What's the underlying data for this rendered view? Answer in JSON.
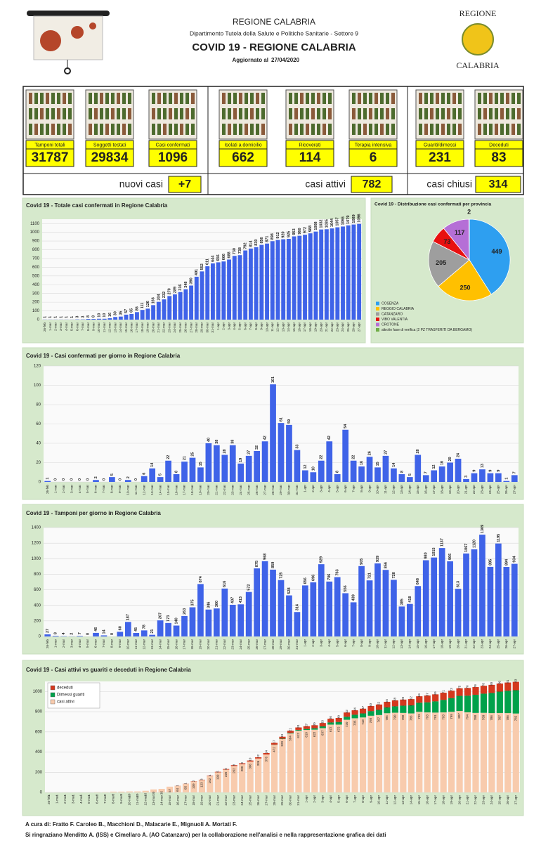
{
  "header": {
    "region": "REGIONE CALABRIA",
    "department": "Dipartimento Tutela della Salute e Politiche Sanitarie - Settore 9",
    "title": "COVID 19 - REGIONE CALABRIA",
    "updated_label": "Aggiornato al",
    "updated_date": "27/04/2020",
    "logo_top": "REGIONE",
    "logo_bottom": "CALABRIA"
  },
  "kpis": [
    {
      "label": "Tamponi totali",
      "value": 31787
    },
    {
      "label": "Soggetti testati",
      "value": 29834
    },
    {
      "label": "Casi confermati",
      "value": 1096
    },
    {
      "label": "Isolati a domicilio",
      "value": 662
    },
    {
      "label": "Ricoverati",
      "value": 114
    },
    {
      "label": "Terapia intensiva",
      "value": 6
    },
    {
      "label": "Guariti/dimessi",
      "value": 231
    },
    {
      "label": "Deceduti",
      "value": 83
    }
  ],
  "summary": [
    {
      "label": "nuovi casi",
      "value": "+7"
    },
    {
      "label": "casi attivi",
      "value": 782
    },
    {
      "label": "casi chiusi",
      "value": 314
    }
  ],
  "chart_data": [
    {
      "type": "bar",
      "title": "Covid 19 - Totale casi confermati in Regione Calabria",
      "color": "#3f63e8",
      "grid": true,
      "ylim": [
        0,
        1150
      ],
      "yticks": [
        0,
        100,
        200,
        300,
        400,
        500,
        600,
        700,
        800,
        900,
        1000,
        1100
      ],
      "categories": [
        "26-feb",
        "1-mar",
        "2-mar",
        "3-mar",
        "4-mar",
        "5-mar",
        "6-mar",
        "7-mar",
        "8-mar",
        "9-mar",
        "10-mar",
        "11-mar",
        "12-mar",
        "13-mar",
        "14-mar",
        "15-mar",
        "16-mar",
        "17-mar",
        "18-mar",
        "19-mar",
        "20-mar",
        "21-mar",
        "22-mar",
        "23-mar",
        "24-mar",
        "25-mar",
        "26-mar",
        "27-mar",
        "28-mar",
        "29-mar",
        "30-mar",
        "31-mar",
        "1-apr",
        "2-apr",
        "3-apr",
        "4-apr",
        "5-apr",
        "6-apr",
        "7-apr",
        "8-apr",
        "9-apr",
        "10-apr",
        "11-apr",
        "12-apr",
        "13-apr",
        "14-apr",
        "15-apr",
        "16-apr",
        "17-apr",
        "18-apr",
        "19-apr",
        "20-apr",
        "21-apr",
        "22-apr",
        "23-apr",
        "24-apr",
        "25-apr",
        "26-apr",
        "27-apr"
      ],
      "values": [
        1,
        1,
        1,
        1,
        1,
        1,
        3,
        3,
        8,
        8,
        10,
        10,
        16,
        30,
        35,
        57,
        65,
        86,
        111,
        126,
        166,
        204,
        232,
        270,
        289,
        316,
        348,
        390,
        491,
        552,
        611,
        644,
        656,
        666,
        688,
        730,
        738,
        792,
        814,
        830,
        856,
        871,
        898,
        912,
        920,
        925,
        953,
        960,
        972,
        988,
        1008,
        1032,
        1035,
        1044,
        1057,
        1066,
        1079,
        1089,
        1096
      ]
    },
    {
      "type": "pie",
      "title": "Covid 19 - Distribuzione casi confermati per provincia",
      "categories": [
        "COSENZA",
        "REGGIO CALABRIA",
        "CATANZARO",
        "VIBO VALENTIA",
        "CROTONE",
        "altro/in fase di verifica (2 PZ TRASFERITI DA BERGAMO)"
      ],
      "values": [
        449,
        250,
        205,
        73,
        117,
        2
      ],
      "colors": [
        "#2e9ff0",
        "#ffc000",
        "#9e9e9e",
        "#e81010",
        "#b56fd6",
        "#70ad47"
      ]
    },
    {
      "type": "bar",
      "title": "Covid 19 - Casi confermati per giorno in Regione Calabria",
      "color": "#3f63e8",
      "grid": true,
      "ylim": [
        0,
        120
      ],
      "yticks": [
        0,
        20,
        40,
        60,
        80,
        100,
        120
      ],
      "categories": [
        "26-feb",
        "1-mar",
        "2-mar",
        "3-mar",
        "4-mar",
        "5-mar",
        "6-mar",
        "7-mar",
        "8-mar",
        "9-mar",
        "10-mar",
        "11-mar",
        "12-mar",
        "13-mar",
        "14-mar",
        "15-mar",
        "16-mar",
        "17-mar",
        "18-mar",
        "19-mar",
        "20-mar",
        "21-mar",
        "22-mar",
        "23-mar",
        "24-mar",
        "25-mar",
        "26-mar",
        "27-mar",
        "28-mar",
        "29-mar",
        "30-mar",
        "31-mar",
        "1-apr",
        "2-apr",
        "3-apr",
        "4-apr",
        "5-apr",
        "6-apr",
        "7-apr",
        "8-apr",
        "9-apr",
        "10-apr",
        "11-apr",
        "12-apr",
        "13-apr",
        "14-apr",
        "15-apr",
        "16-apr",
        "17-apr",
        "18-apr",
        "19-apr",
        "20-apr",
        "21-apr",
        "22-apr",
        "23-apr",
        "24-apr",
        "25-apr",
        "26-apr",
        "27-apr"
      ],
      "values": [
        1,
        0,
        0,
        0,
        0,
        0,
        2,
        0,
        5,
        0,
        2,
        0,
        6,
        14,
        5,
        22,
        8,
        21,
        25,
        15,
        40,
        38,
        28,
        38,
        19,
        27,
        32,
        42,
        101,
        61,
        59,
        33,
        12,
        10,
        22,
        42,
        8,
        54,
        22,
        16,
        26,
        15,
        27,
        14,
        8,
        5,
        28,
        7,
        12,
        16,
        20,
        24,
        3,
        9,
        13,
        9,
        9,
        1,
        7
      ]
    },
    {
      "type": "bar",
      "title": "Covid 19 - Tamponi per giorno in Regione Calabria",
      "color": "#3f63e8",
      "grid": true,
      "ylim": [
        0,
        1400
      ],
      "yticks": [
        0,
        200,
        400,
        600,
        800,
        1000,
        1200,
        1400
      ],
      "categories": [
        "26-feb",
        "1-mar",
        "2-mar",
        "3-mar",
        "4-mar",
        "5-mar",
        "6-mar",
        "7-mar",
        "8-mar",
        "9-mar",
        "10-mar",
        "11-mar",
        "12-mar",
        "13-mar",
        "14-mar",
        "15-mar",
        "16-mar",
        "17-mar",
        "18-mar",
        "19-mar",
        "20-mar",
        "21-mar",
        "22-mar",
        "23-mar",
        "24-mar",
        "25-mar",
        "26-mar",
        "27-mar",
        "28-mar",
        "29-mar",
        "30-mar",
        "31-mar",
        "1-apr",
        "2-apr",
        "3-apr",
        "4-apr",
        "5-apr",
        "6-apr",
        "7-apr",
        "8-apr",
        "9-apr",
        "10-apr",
        "11-apr",
        "12-apr",
        "13-apr",
        "14-apr",
        "15-apr",
        "16-apr",
        "17-apr",
        "18-apr",
        "19-apr",
        "20-apr",
        "21-apr",
        "22-apr",
        "23-apr",
        "24-apr",
        "25-apr",
        "26-apr",
        "27-apr"
      ],
      "values": [
        27,
        8,
        4,
        2,
        7,
        0,
        46,
        14,
        0,
        60,
        187,
        45,
        78,
        21,
        207,
        173,
        140,
        263,
        375,
        674,
        346,
        360,
        616,
        407,
        413,
        572,
        875,
        968,
        859,
        725,
        528,
        314,
        656,
        696,
        929,
        706,
        763,
        556,
        439,
        905,
        721,
        939,
        856,
        728,
        385,
        418,
        648,
        980,
        1015,
        1137,
        966,
        613,
        1067,
        1120,
        1309,
        895,
        1195,
        894,
        934
      ]
    },
    {
      "type": "stacked_bar",
      "title": "Covid 19 - Casi attivi vs guariti e deceduti in Regione Calabria",
      "grid": true,
      "ylim": [
        0,
        1100
      ],
      "yticks": [
        0,
        200,
        400,
        600,
        800,
        1000
      ],
      "categories": [
        "26-feb",
        "1-mar",
        "2-mar",
        "3-mar",
        "4-mar",
        "5-mar",
        "6-mar",
        "7-mar",
        "8-mar",
        "9-mar",
        "10-mar",
        "11-mar",
        "12-mar",
        "13-mar",
        "14-mar",
        "15-mar",
        "16-mar",
        "17-mar",
        "18-mar",
        "19-mar",
        "20-mar",
        "21-mar",
        "22-mar",
        "23-mar",
        "24-mar",
        "25-mar",
        "26-mar",
        "27-mar",
        "28-mar",
        "29-mar",
        "30-mar",
        "31-mar",
        "1-apr",
        "2-apr",
        "3-apr",
        "4-apr",
        "5-apr",
        "6-apr",
        "7-apr",
        "8-apr",
        "9-apr",
        "10-apr",
        "11-apr",
        "12-apr",
        "13-apr",
        "14-apr",
        "15-apr",
        "16-apr",
        "17-apr",
        "18-apr",
        "19-apr",
        "20-apr",
        "21-apr",
        "22-apr",
        "23-apr",
        "24-apr",
        "25-apr",
        "26-apr",
        "27-apr"
      ],
      "series": [
        {
          "name": "casi attivi",
          "color": "#f8cbad",
          "values": [
            1,
            1,
            1,
            1,
            1,
            1,
            3,
            3,
            8,
            8,
            10,
            10,
            16,
            30,
            35,
            57,
            64,
            85,
            109,
            123,
            162,
            199,
            226,
            262,
            280,
            306,
            336,
            376,
            472,
            529,
            584,
            612,
            619,
            622,
            637,
            672,
            672,
            720,
            735,
            743,
            760,
            767,
            785,
            790,
            788,
            783,
            799,
            793,
            791,
            793,
            799,
            807,
            794,
            788,
            789,
            786,
            787,
            786,
            782
          ]
        },
        {
          "name": "Dimessi guariti",
          "color": "#00a14b",
          "values": [
            0,
            0,
            0,
            0,
            0,
            0,
            0,
            0,
            0,
            0,
            0,
            0,
            0,
            0,
            0,
            0,
            0,
            0,
            0,
            0,
            0,
            0,
            0,
            0,
            0,
            0,
            0,
            0,
            2,
            4,
            6,
            8,
            10,
            14,
            18,
            22,
            26,
            30,
            35,
            40,
            46,
            52,
            58,
            64,
            72,
            80,
            90,
            100,
            112,
            124,
            136,
            150,
            165,
            180,
            190,
            200,
            212,
            222,
            231
          ]
        },
        {
          "name": "deceduti",
          "color": "#d4381e",
          "values": [
            0,
            0,
            0,
            0,
            0,
            0,
            0,
            0,
            0,
            0,
            0,
            0,
            0,
            0,
            0,
            0,
            1,
            1,
            2,
            3,
            4,
            5,
            6,
            8,
            9,
            10,
            12,
            14,
            17,
            19,
            21,
            24,
            27,
            30,
            33,
            36,
            40,
            42,
            44,
            47,
            50,
            52,
            55,
            58,
            60,
            62,
            64,
            67,
            69,
            71,
            73,
            75,
            76,
            76,
            78,
            80,
            80,
            81,
            83
          ]
        }
      ]
    }
  ],
  "footer": [
    "A cura di: Fratto F. Caroleo B., Macchioni D., Malacarie E., Mignuoli A. Mortati F.",
    "Si ringraziano Menditto A. (ISS) e Cimellaro A. (AO Catanzaro) per la collaborazione nell'analisi e nella rappresentazione grafica dei dati"
  ]
}
